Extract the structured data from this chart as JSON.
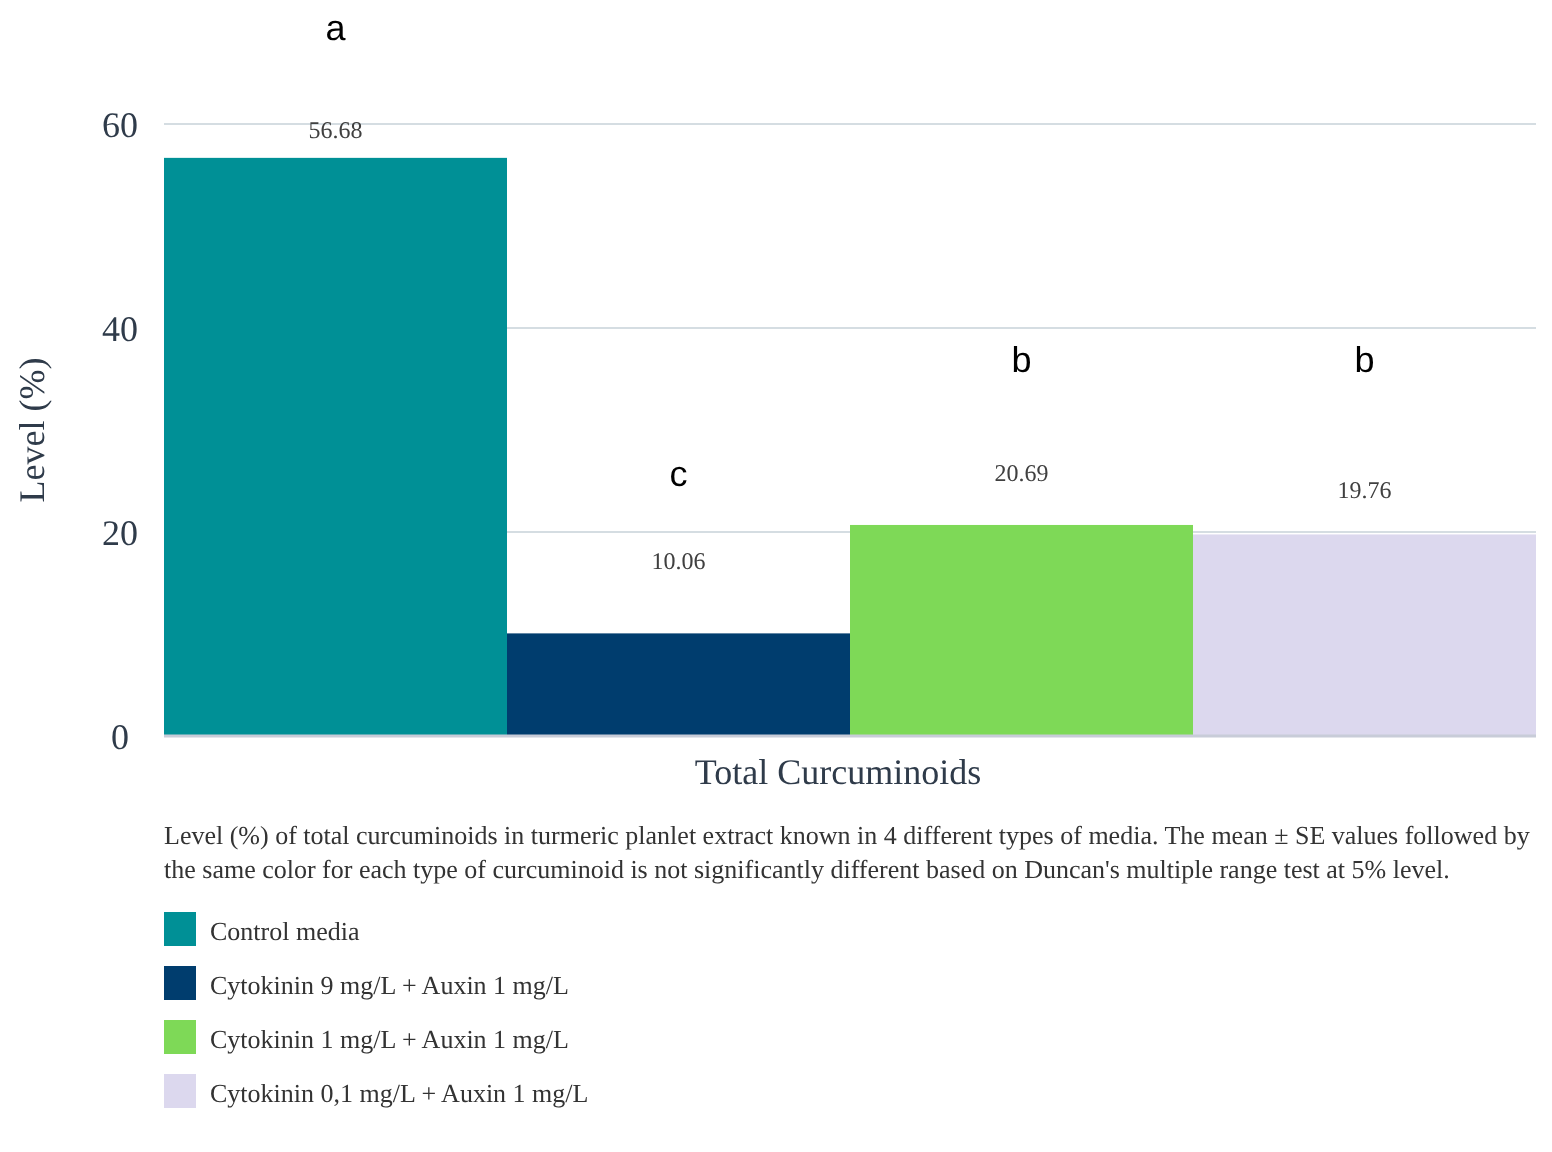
{
  "chart_data": {
    "type": "bar",
    "ylabel": "Level (%)",
    "categories": [
      "Total Curcuminoids"
    ],
    "series": [
      {
        "name": "Control media",
        "color": "#009096",
        "values": [
          56.68
        ]
      },
      {
        "name": "Cytokinin 9 mg/L + Auxin 1 mg/L",
        "color": "#003d6e",
        "values": [
          10.06
        ]
      },
      {
        "name": "Cytokinin 1 mg/L + Auxin 1 mg/L",
        "color": "#7ed957",
        "values": [
          20.69
        ]
      },
      {
        "name": "Cytokinin 0,1 mg/L + Auxin 1 mg/L",
        "color": "#dcd8ee",
        "values": [
          19.76
        ]
      }
    ],
    "ylim": [
      0,
      60
    ],
    "yticks": [
      0,
      20,
      40,
      60
    ],
    "grid": "y",
    "data_labels": true,
    "legend": "bottom",
    "annotations": [
      "a",
      "c",
      "b",
      "b",
      "Level (%) of total curcuminoids in turmeric planlet extract known in 4 different types of media. The mean ± SE values followed by the same color for each type of curcuminoid is not significantly different based on Duncan's multiple range test at 5% level."
    ]
  }
}
